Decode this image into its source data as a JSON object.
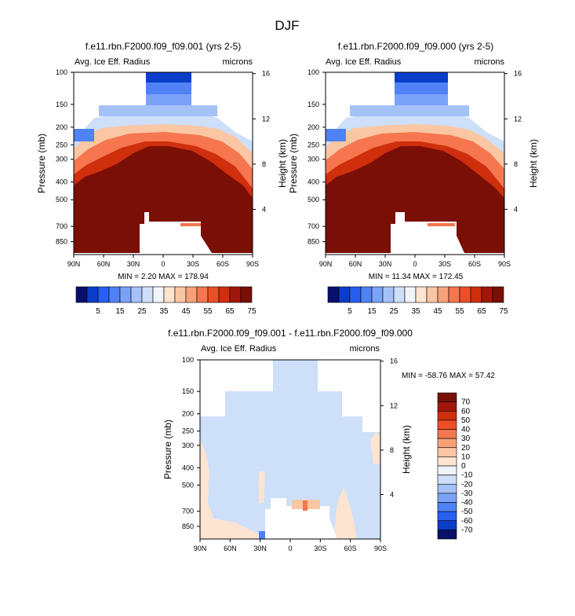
{
  "title": "DJF",
  "chart_data": [
    {
      "type": "heatmap",
      "title": "f.e11.rbn.F2000.f09_f09.001 (yrs 2-5)",
      "field_label": "Avg. Ice Eff. Radius",
      "units": "microns",
      "ylabel": "Pressure (mb)",
      "y2label": "Height (km)",
      "x_ticks": [
        "90N",
        "60N",
        "30N",
        "0",
        "30S",
        "60S",
        "90S"
      ],
      "y_ticks": [
        "100",
        "150",
        "200",
        "250",
        "300",
        "400",
        "500",
        "700",
        "850"
      ],
      "y2_ticks": [
        "16",
        "12",
        "8",
        "4"
      ],
      "min_max_label": "MIN =   2.20   MAX = 178.94",
      "min": 2.2,
      "max": 178.94
    },
    {
      "type": "heatmap",
      "title": "f.e11.rbn.F2000.f09_f09.000 (yrs 2-5)",
      "field_label": "Avg. Ice Eff. Radius",
      "units": "microns",
      "ylabel": "Pressure (mb)",
      "y2label": "Height (km)",
      "x_ticks": [
        "90N",
        "60N",
        "30N",
        "0",
        "30S",
        "60S",
        "90S"
      ],
      "y_ticks": [
        "100",
        "150",
        "200",
        "250",
        "300",
        "400",
        "500",
        "700",
        "850"
      ],
      "y2_ticks": [
        "16",
        "12",
        "8",
        "4"
      ],
      "min_max_label": "MIN = 11.34   MAX = 172.45",
      "min": 11.34,
      "max": 172.45
    },
    {
      "type": "heatmap",
      "title": "f.e11.rbn.F2000.f09_f09.001 - f.e11.rbn.F2000.f09_f09.000",
      "field_label": "Avg. Ice Eff. Radius",
      "units": "microns",
      "ylabel": "Pressure (mb)",
      "y2label": "Height (km)",
      "x_ticks": [
        "90N",
        "60N",
        "30N",
        "0",
        "30S",
        "60S",
        "90S"
      ],
      "y_ticks": [
        "100",
        "150",
        "200",
        "250",
        "300",
        "400",
        "500",
        "700",
        "850"
      ],
      "y2_ticks": [
        "16",
        "12",
        "8",
        "4"
      ],
      "min_max_label": "MIN = -58.76   MAX =  57.42",
      "min": -58.76,
      "max": 57.42
    }
  ],
  "colorbar_top": {
    "labels": [
      "5",
      "15",
      "25",
      "35",
      "45",
      "55",
      "65",
      "75"
    ],
    "colors": [
      "#08106b",
      "#0a3ec9",
      "#2760f0",
      "#4f82f5",
      "#7aa2f7",
      "#a4c1f8",
      "#cddff9",
      "#f0f4fb",
      "#fde4d0",
      "#fbc6a3",
      "#f9a079",
      "#f5764f",
      "#ec4f27",
      "#cf2f0d",
      "#a3170a",
      "#7a0f06"
    ]
  },
  "colorbar_diff": {
    "labels": [
      "70",
      "60",
      "50",
      "40",
      "30",
      "20",
      "10",
      "0",
      "-10",
      "-20",
      "-30",
      "-40",
      "-50",
      "-60",
      "-70"
    ],
    "colors": [
      "#7a0f06",
      "#a3170a",
      "#cf2f0d",
      "#ec4f27",
      "#f5764f",
      "#f9a079",
      "#fbc6a3",
      "#fde4d0",
      "#f0f4fb",
      "#cddff9",
      "#a4c1f8",
      "#7aa2f7",
      "#4f82f5",
      "#2760f0",
      "#0a3ec9",
      "#08106b"
    ]
  }
}
